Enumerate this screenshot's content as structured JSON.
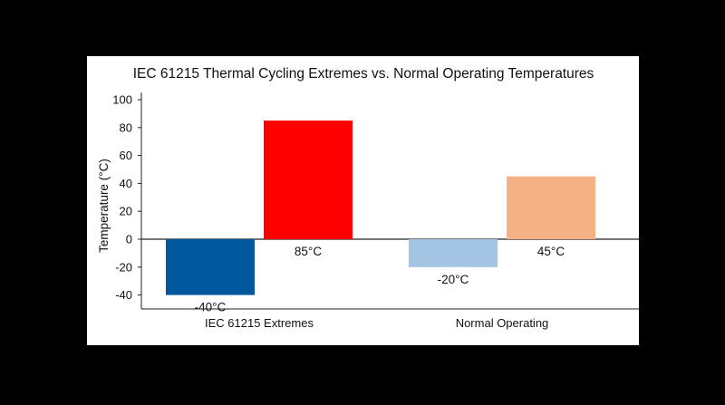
{
  "chart_data": {
    "type": "bar",
    "title": "IEC 61215 Thermal Cycling Extremes vs. Normal Operating Temperatures",
    "ylabel": "Temperature (°C)",
    "xlabel": "",
    "ylim": [
      -50,
      105
    ],
    "yticks": [
      100,
      80,
      60,
      40,
      20,
      0,
      -20,
      -40
    ],
    "categories": [
      "IEC 61215 Extremes",
      "Normal Operating"
    ],
    "series": [
      {
        "values": [
          -40,
          -20
        ],
        "colors": [
          "#01579b",
          "#a4c4e4"
        ],
        "labels": [
          "-40°C",
          "-20°C"
        ]
      },
      {
        "values": [
          85,
          45
        ],
        "colors": [
          "#ff0000",
          "#f4b183"
        ],
        "labels": [
          "85°C",
          "45°C"
        ]
      }
    ],
    "grid": false,
    "legend": "none"
  }
}
